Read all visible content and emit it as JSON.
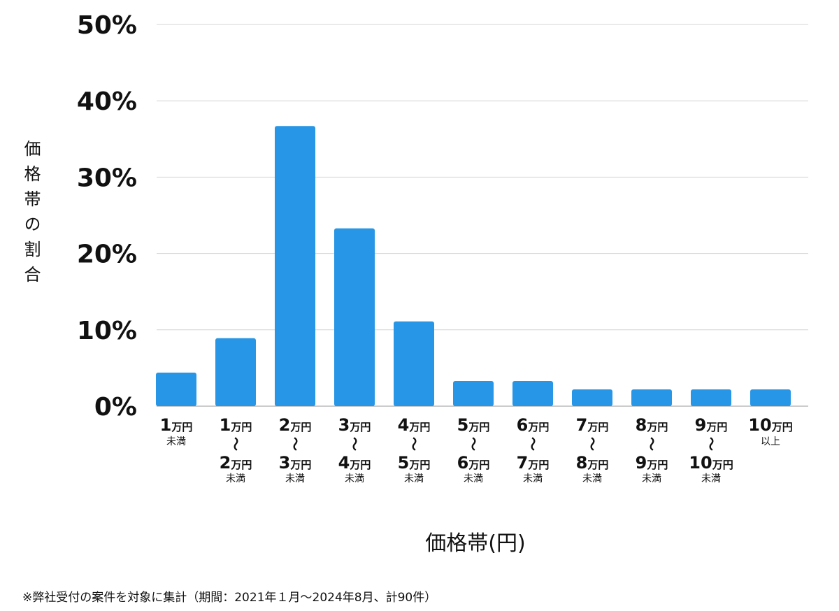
{
  "chart_data": {
    "type": "bar",
    "title": "",
    "xlabel": "価格帯(円)",
    "ylabel": "価格帯の割合",
    "ylim": [
      0,
      50
    ],
    "yticks": [
      "0%",
      "10%",
      "20%",
      "30%",
      "40%",
      "50%"
    ],
    "grid": true,
    "unit": "万円",
    "range_mark": "〜",
    "categories": [
      {
        "top": "1",
        "bottom": "",
        "note": "未満"
      },
      {
        "top": "1",
        "bottom": "2",
        "note": "未満"
      },
      {
        "top": "2",
        "bottom": "3",
        "note": "未満"
      },
      {
        "top": "3",
        "bottom": "4",
        "note": "未満"
      },
      {
        "top": "4",
        "bottom": "5",
        "note": "未満"
      },
      {
        "top": "5",
        "bottom": "6",
        "note": "未満"
      },
      {
        "top": "6",
        "bottom": "7",
        "note": "未満"
      },
      {
        "top": "7",
        "bottom": "8",
        "note": "未満"
      },
      {
        "top": "8",
        "bottom": "9",
        "note": "未満"
      },
      {
        "top": "9",
        "bottom": "10",
        "note": "未満"
      },
      {
        "top": "10",
        "bottom": "",
        "note": "以上"
      }
    ],
    "values": [
      4.4,
      8.9,
      36.7,
      23.3,
      11.1,
      3.3,
      3.3,
      2.2,
      2.2,
      2.2,
      2.2
    ],
    "bar_color": "#2896e6"
  },
  "footnote": "※弊社受付の案件を対象に集計（期間：2021年１月〜2024年8月、計90件）"
}
